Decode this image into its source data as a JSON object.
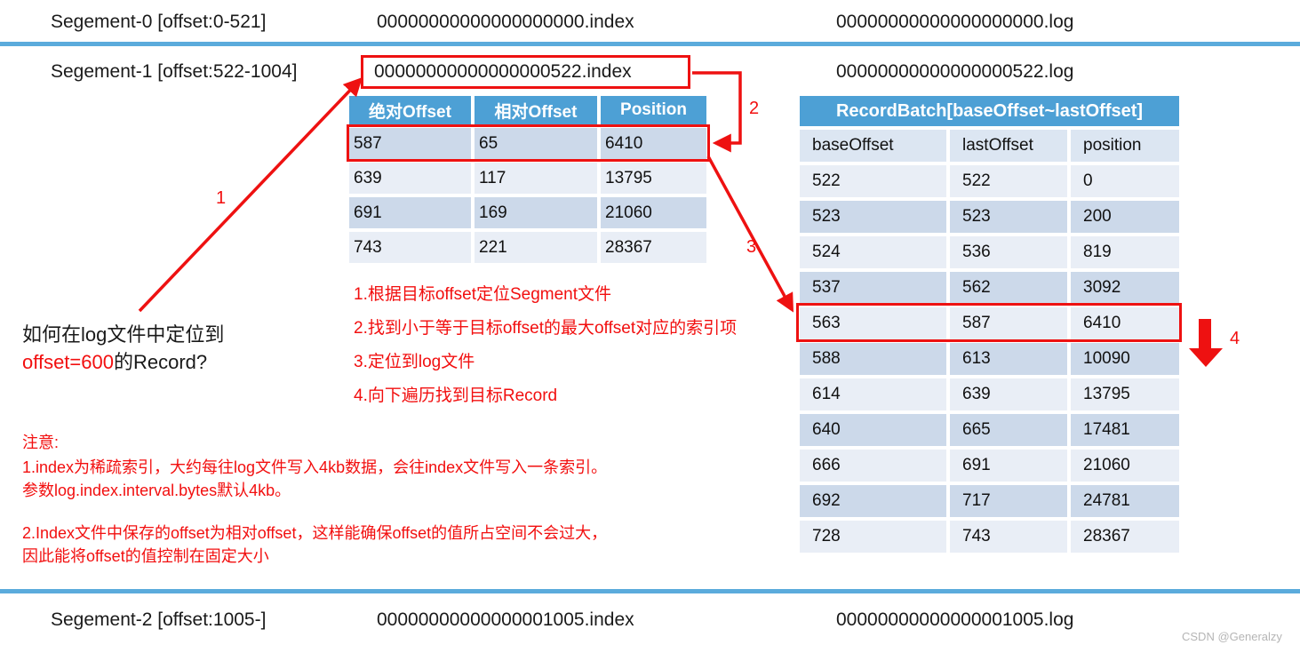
{
  "colors": {
    "accent_red": "#ee1111",
    "table_header_blue": "#4da0d5",
    "divider_blue": "#5babdc",
    "row_dark": "#ccd9ea",
    "row_light": "#e9eef6",
    "subheader_bg": "#dce6f2",
    "watermark_gray": "#b5b5b5"
  },
  "segments": [
    {
      "label": "Segement-0 [offset:0-521]",
      "index_file": "00000000000000000000.index",
      "log_file": "00000000000000000000.log"
    },
    {
      "label": "Segement-1 [offset:522-1004]",
      "index_file": "00000000000000000522.index",
      "log_file": "00000000000000000522.log"
    },
    {
      "label": "Segement-2 [offset:1005-]",
      "index_file": "00000000000000001005.index",
      "log_file": "00000000000000001005.log"
    }
  ],
  "index_table": {
    "headers": [
      "绝对Offset",
      "相对Offset",
      "Position"
    ],
    "rows": [
      [
        "587",
        "65",
        "6410"
      ],
      [
        "639",
        "117",
        "13795"
      ],
      [
        "691",
        "169",
        "21060"
      ],
      [
        "743",
        "221",
        "28367"
      ]
    ],
    "highlighted_row": "587 | 65 | 6410"
  },
  "log_table": {
    "title": "RecordBatch[baseOffset~lastOffset]",
    "headers": [
      "baseOffset",
      "lastOffset",
      "position"
    ],
    "rows": [
      [
        "522",
        "522",
        "0"
      ],
      [
        "523",
        "523",
        "200"
      ],
      [
        "524",
        "536",
        "819"
      ],
      [
        "537",
        "562",
        "3092"
      ],
      [
        "563",
        "587",
        "6410"
      ],
      [
        "588",
        "613",
        "10090"
      ],
      [
        "614",
        "639",
        "13795"
      ],
      [
        "640",
        "665",
        "17481"
      ],
      [
        "666",
        "691",
        "21060"
      ],
      [
        "692",
        "717",
        "24781"
      ],
      [
        "728",
        "743",
        "28367"
      ]
    ],
    "highlighted_row": "563 | 587 | 6410"
  },
  "question": {
    "line1": "如何在log文件中定位到",
    "highlight": "offset=600",
    "suffix": "的Record?"
  },
  "steps": [
    "1.根据目标offset定位Segment文件",
    "2.找到小于等于目标offset的最大offset对应的索引项",
    "3.定位到log文件",
    "4.向下遍历找到目标Record"
  ],
  "notes": {
    "title": "注意:",
    "lines": [
      "1.index为稀疏索引，大约每往log文件写入4kb数据，会往index文件写入一条索引。",
      "参数log.index.interval.bytes默认4kb。",
      "2.Index文件中保存的offset为相对offset，这样能确保offset的值所占空间不会过大，",
      "因此能将offset的值控制在固定大小"
    ]
  },
  "arrow_labels": [
    "1",
    "2",
    "3",
    "4"
  ],
  "watermark": "CSDN @Generalzy"
}
